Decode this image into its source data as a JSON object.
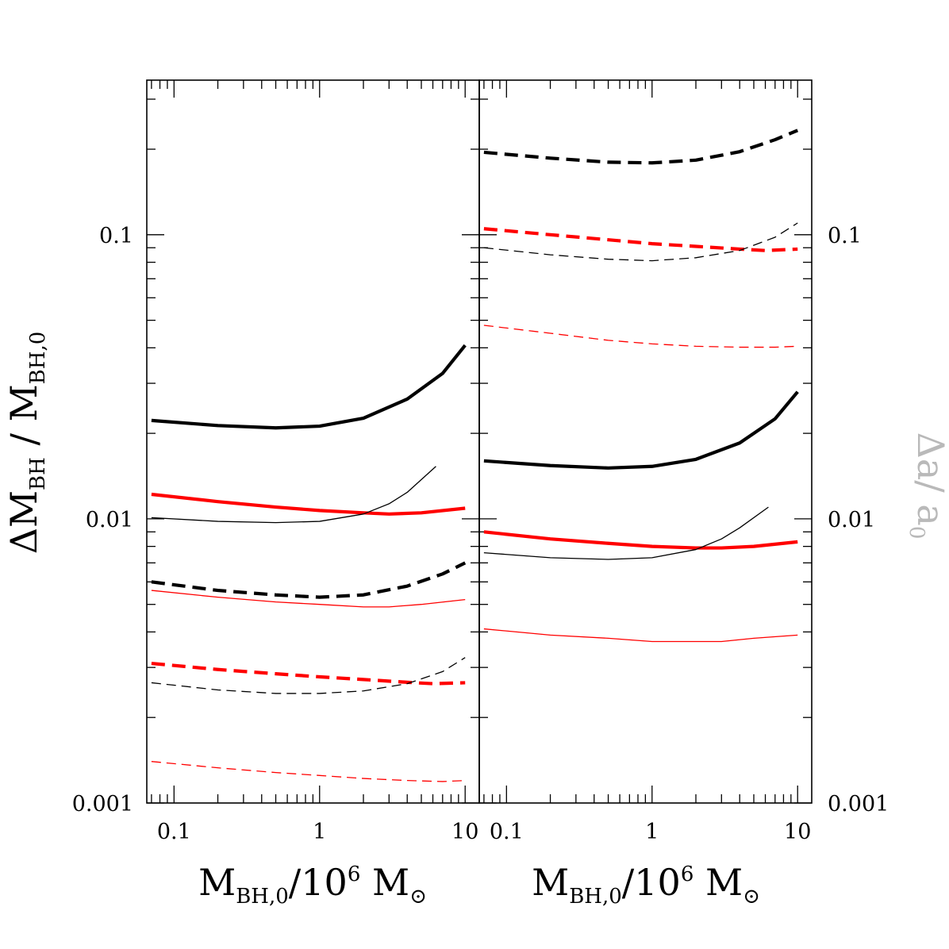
{
  "figure": {
    "left_ylabel": {
      "main1": "ΔM",
      "sub1": "BH",
      "sep": " / ",
      "main2": "M",
      "sub2": "BH,0"
    },
    "right_ylabel": {
      "main1": "Δa",
      "sep": "/ ",
      "main2": "a",
      "sub2": "0"
    },
    "xlabel": {
      "main1": "M",
      "sub1": "BH,0",
      "sep": "/",
      "main2": "10",
      "sup2": "6",
      "main3": " M",
      "sub3": "⊙"
    }
  },
  "colors": {
    "black": "#000000",
    "red": "#ff0000",
    "axis": "#000000"
  },
  "chart_data": [
    {
      "type": "line",
      "panel": "left",
      "xscale": "log",
      "yscale": "log",
      "xlim": [
        0.065,
        12.5
      ],
      "ylim": [
        0.001,
        0.35
      ],
      "xticks": [
        0.1,
        1,
        10
      ],
      "xtick_labels": [
        "0.1",
        "1",
        "10"
      ],
      "yticks": [
        0.001,
        0.01,
        0.1
      ],
      "ytick_labels": [
        "0.001",
        "0.01",
        "0.1"
      ],
      "series": [
        {
          "name": "black-thick-solid",
          "color": "black",
          "width": "thick",
          "dash": "solid",
          "x": [
            0.07,
            0.2,
            0.5,
            1,
            2,
            4,
            7,
            10
          ],
          "y": [
            0.0222,
            0.0213,
            0.0209,
            0.0212,
            0.0226,
            0.0264,
            0.0325,
            0.0408
          ]
        },
        {
          "name": "red-thick-solid",
          "color": "red",
          "width": "thick",
          "dash": "solid",
          "x": [
            0.07,
            0.2,
            0.5,
            1,
            2,
            3,
            5,
            10
          ],
          "y": [
            0.0122,
            0.0115,
            0.011,
            0.0107,
            0.0105,
            0.0104,
            0.0105,
            0.0109
          ]
        },
        {
          "name": "black-thin-solid",
          "color": "black",
          "width": "thin",
          "dash": "solid",
          "x": [
            0.07,
            0.2,
            0.5,
            1,
            2,
            3,
            4,
            6.3
          ],
          "y": [
            0.0101,
            0.0098,
            0.0097,
            0.0098,
            0.0104,
            0.0113,
            0.0124,
            0.0153
          ]
        },
        {
          "name": "black-thick-dashed",
          "color": "black",
          "width": "thick",
          "dash": "dashed",
          "x": [
            0.07,
            0.2,
            0.5,
            1,
            2,
            4,
            7,
            10
          ],
          "y": [
            0.006,
            0.0056,
            0.0054,
            0.0053,
            0.0054,
            0.0058,
            0.0064,
            0.007
          ]
        },
        {
          "name": "red-thin-solid",
          "color": "red",
          "width": "thin",
          "dash": "solid",
          "x": [
            0.07,
            0.2,
            0.5,
            1,
            2,
            3,
            5,
            10
          ],
          "y": [
            0.0056,
            0.0053,
            0.0051,
            0.005,
            0.0049,
            0.0049,
            0.005,
            0.0052
          ]
        },
        {
          "name": "red-thick-dashed",
          "color": "red",
          "width": "thick",
          "dash": "dashed",
          "x": [
            0.07,
            0.2,
            0.5,
            1,
            2,
            4,
            6,
            10
          ],
          "y": [
            0.0031,
            0.00295,
            0.00285,
            0.00278,
            0.00272,
            0.00266,
            0.00263,
            0.00265
          ]
        },
        {
          "name": "black-thin-dashed",
          "color": "black",
          "width": "thin",
          "dash": "dashed",
          "x": [
            0.07,
            0.2,
            0.5,
            1,
            2,
            4,
            7,
            10
          ],
          "y": [
            0.00265,
            0.0025,
            0.00243,
            0.00243,
            0.00248,
            0.00263,
            0.0029,
            0.00325
          ]
        },
        {
          "name": "red-thin-dashed",
          "color": "red",
          "width": "thin",
          "dash": "dashed",
          "x": [
            0.07,
            0.2,
            0.5,
            1,
            2,
            4,
            7,
            10
          ],
          "y": [
            0.0014,
            0.00133,
            0.00128,
            0.00125,
            0.00122,
            0.0012,
            0.00119,
            0.0012
          ]
        }
      ]
    },
    {
      "type": "line",
      "panel": "right",
      "xscale": "log",
      "yscale": "log",
      "xlim": [
        0.065,
        12.5
      ],
      "ylim": [
        0.001,
        0.35
      ],
      "xticks": [
        0.1,
        1,
        10
      ],
      "xtick_labels": [
        "0.1",
        "1",
        "10"
      ],
      "yticks": [
        0.001,
        0.01,
        0.1
      ],
      "ytick_labels": [
        "0.001",
        "0.01",
        "0.1"
      ],
      "series": [
        {
          "name": "black-thick-dashed",
          "color": "black",
          "width": "thick",
          "dash": "dashed",
          "x": [
            0.07,
            0.2,
            0.5,
            1,
            2,
            4,
            7,
            10
          ],
          "y": [
            0.195,
            0.186,
            0.18,
            0.179,
            0.183,
            0.196,
            0.216,
            0.233
          ]
        },
        {
          "name": "red-thick-dashed",
          "color": "red",
          "width": "thick",
          "dash": "dashed",
          "x": [
            0.07,
            0.2,
            0.5,
            1,
            2,
            4,
            6,
            10
          ],
          "y": [
            0.105,
            0.1,
            0.096,
            0.093,
            0.091,
            0.089,
            0.088,
            0.089
          ]
        },
        {
          "name": "black-thin-dashed",
          "color": "black",
          "width": "thin",
          "dash": "dashed",
          "x": [
            0.07,
            0.2,
            0.5,
            1,
            2,
            4,
            7,
            10
          ],
          "y": [
            0.09,
            0.085,
            0.082,
            0.081,
            0.083,
            0.088,
            0.098,
            0.11
          ]
        },
        {
          "name": "red-thin-dashed",
          "color": "red",
          "width": "thin",
          "dash": "dashed",
          "x": [
            0.07,
            0.2,
            0.5,
            1,
            2,
            4,
            7,
            10
          ],
          "y": [
            0.048,
            0.045,
            0.0425,
            0.0413,
            0.0405,
            0.0402,
            0.0402,
            0.0405
          ]
        },
        {
          "name": "black-thick-solid",
          "color": "black",
          "width": "thick",
          "dash": "solid",
          "x": [
            0.07,
            0.2,
            0.5,
            1,
            2,
            4,
            7,
            10
          ],
          "y": [
            0.016,
            0.0154,
            0.0151,
            0.0153,
            0.0162,
            0.0185,
            0.0225,
            0.028
          ]
        },
        {
          "name": "red-thick-solid",
          "color": "red",
          "width": "thick",
          "dash": "solid",
          "x": [
            0.07,
            0.2,
            0.5,
            1,
            2,
            3,
            5,
            10
          ],
          "y": [
            0.009,
            0.0085,
            0.0082,
            0.008,
            0.0079,
            0.0079,
            0.008,
            0.0083
          ]
        },
        {
          "name": "black-thin-solid",
          "color": "black",
          "width": "thin",
          "dash": "solid",
          "x": [
            0.07,
            0.2,
            0.5,
            1,
            2,
            3,
            4,
            6.3
          ],
          "y": [
            0.0076,
            0.0073,
            0.0072,
            0.0073,
            0.0078,
            0.0085,
            0.0093,
            0.011
          ]
        },
        {
          "name": "red-thin-solid",
          "color": "red",
          "width": "thin",
          "dash": "solid",
          "x": [
            0.07,
            0.2,
            0.5,
            1,
            2,
            3,
            5,
            10
          ],
          "y": [
            0.0041,
            0.0039,
            0.0038,
            0.0037,
            0.0037,
            0.0037,
            0.0038,
            0.0039
          ]
        }
      ]
    }
  ]
}
